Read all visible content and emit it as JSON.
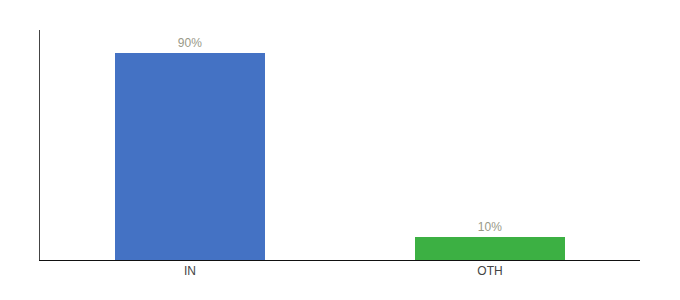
{
  "chart_data": {
    "type": "bar",
    "categories": [
      "IN",
      "OTH"
    ],
    "values": [
      90,
      10
    ],
    "value_labels": [
      "90%",
      "10%"
    ],
    "data_labels": true,
    "colors": [
      "#4472c4",
      "#3cb043"
    ],
    "ylim": [
      0,
      100
    ],
    "yticks": [],
    "grid": false,
    "tick_labels": "x"
  }
}
